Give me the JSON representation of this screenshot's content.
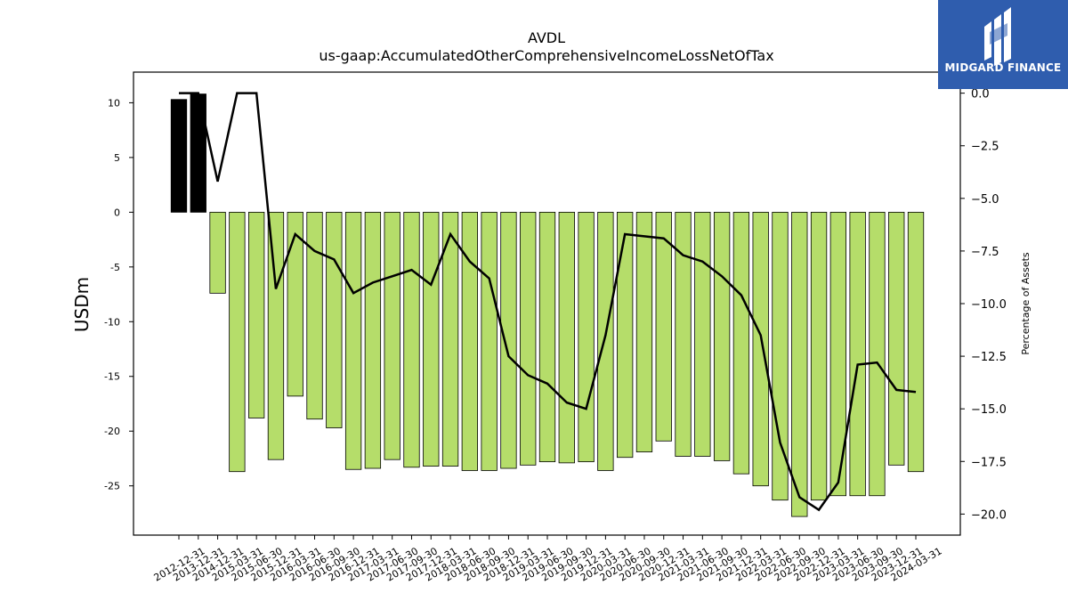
{
  "logo": {
    "text": "MIDGARD FINANCE"
  },
  "colors": {
    "positive": "#000000",
    "negative": "#b5dd6a",
    "line": "#000000",
    "logo_bg": "#2f5dae"
  },
  "chart_data": {
    "type": "bar",
    "title": "AVDL",
    "subtitle": "us-gaap:AccumulatedOtherComprehensiveIncomeLossNetOfTax",
    "ylabel": "USDm",
    "y2label": "Percentage of Assets",
    "ylim": [
      -29.5,
      12.8
    ],
    "y2lim": [
      -21.0,
      1.0
    ],
    "yticks": [
      10,
      5,
      0,
      -5,
      -10,
      -15,
      -20,
      -25
    ],
    "y2ticks": [
      0.0,
      -2.5,
      -5.0,
      -7.5,
      -10.0,
      -12.5,
      -15.0,
      -17.5,
      -20.0
    ],
    "grid": false,
    "categories": [
      "2012-12-31",
      "2013-12-31",
      "2014-12-31",
      "2015-03-31",
      "2015-06-30",
      "2015-12-31",
      "2016-03-31",
      "2016-06-30",
      "2016-09-30",
      "2016-12-31",
      "2017-03-31",
      "2017-06-30",
      "2017-09-30",
      "2017-12-31",
      "2018-03-31",
      "2018-06-30",
      "2018-09-30",
      "2018-12-31",
      "2019-03-31",
      "2019-06-30",
      "2019-09-30",
      "2019-12-31",
      "2020-03-31",
      "2020-06-30",
      "2020-09-30",
      "2020-12-31",
      "2021-03-31",
      "2021-06-30",
      "2021-09-30",
      "2021-12-31",
      "2022-03-31",
      "2022-06-30",
      "2022-09-30",
      "2022-12-31",
      "2023-03-31",
      "2023-06-30",
      "2023-09-30",
      "2023-12-31",
      "2024-03-31"
    ],
    "series": [
      {
        "type": "bar",
        "values": [
          10.3,
          10.8,
          -7.4,
          -23.7,
          -18.8,
          -22.6,
          -16.8,
          -18.9,
          -19.7,
          -23.5,
          -23.4,
          -22.6,
          -23.3,
          -23.2,
          -23.2,
          -23.6,
          -23.6,
          -23.4,
          -23.1,
          -22.8,
          -22.9,
          -22.8,
          -23.6,
          -22.4,
          -21.9,
          -20.9,
          -22.3,
          -22.3,
          -22.7,
          -23.9,
          -25.0,
          -26.3,
          -27.8,
          -26.3,
          -25.9,
          -25.9,
          -25.9,
          -23.1,
          -23.7
        ]
      },
      {
        "type": "line",
        "axis": "right",
        "values": [
          0.0,
          0.0,
          -4.2,
          0.0,
          0.0,
          -9.3,
          -6.7,
          -7.5,
          -7.9,
          -9.5,
          -9.0,
          -8.7,
          -8.4,
          -9.1,
          -6.7,
          -8.0,
          -8.8,
          -12.5,
          -13.4,
          -13.8,
          -14.7,
          -15.0,
          -11.5,
          -6.7,
          -6.8,
          -6.9,
          -7.7,
          -8.0,
          -8.7,
          -9.6,
          -11.5,
          -16.6,
          -19.2,
          -19.8,
          -18.5,
          -12.9,
          -12.8,
          -14.1,
          -14.2
        ]
      }
    ]
  }
}
